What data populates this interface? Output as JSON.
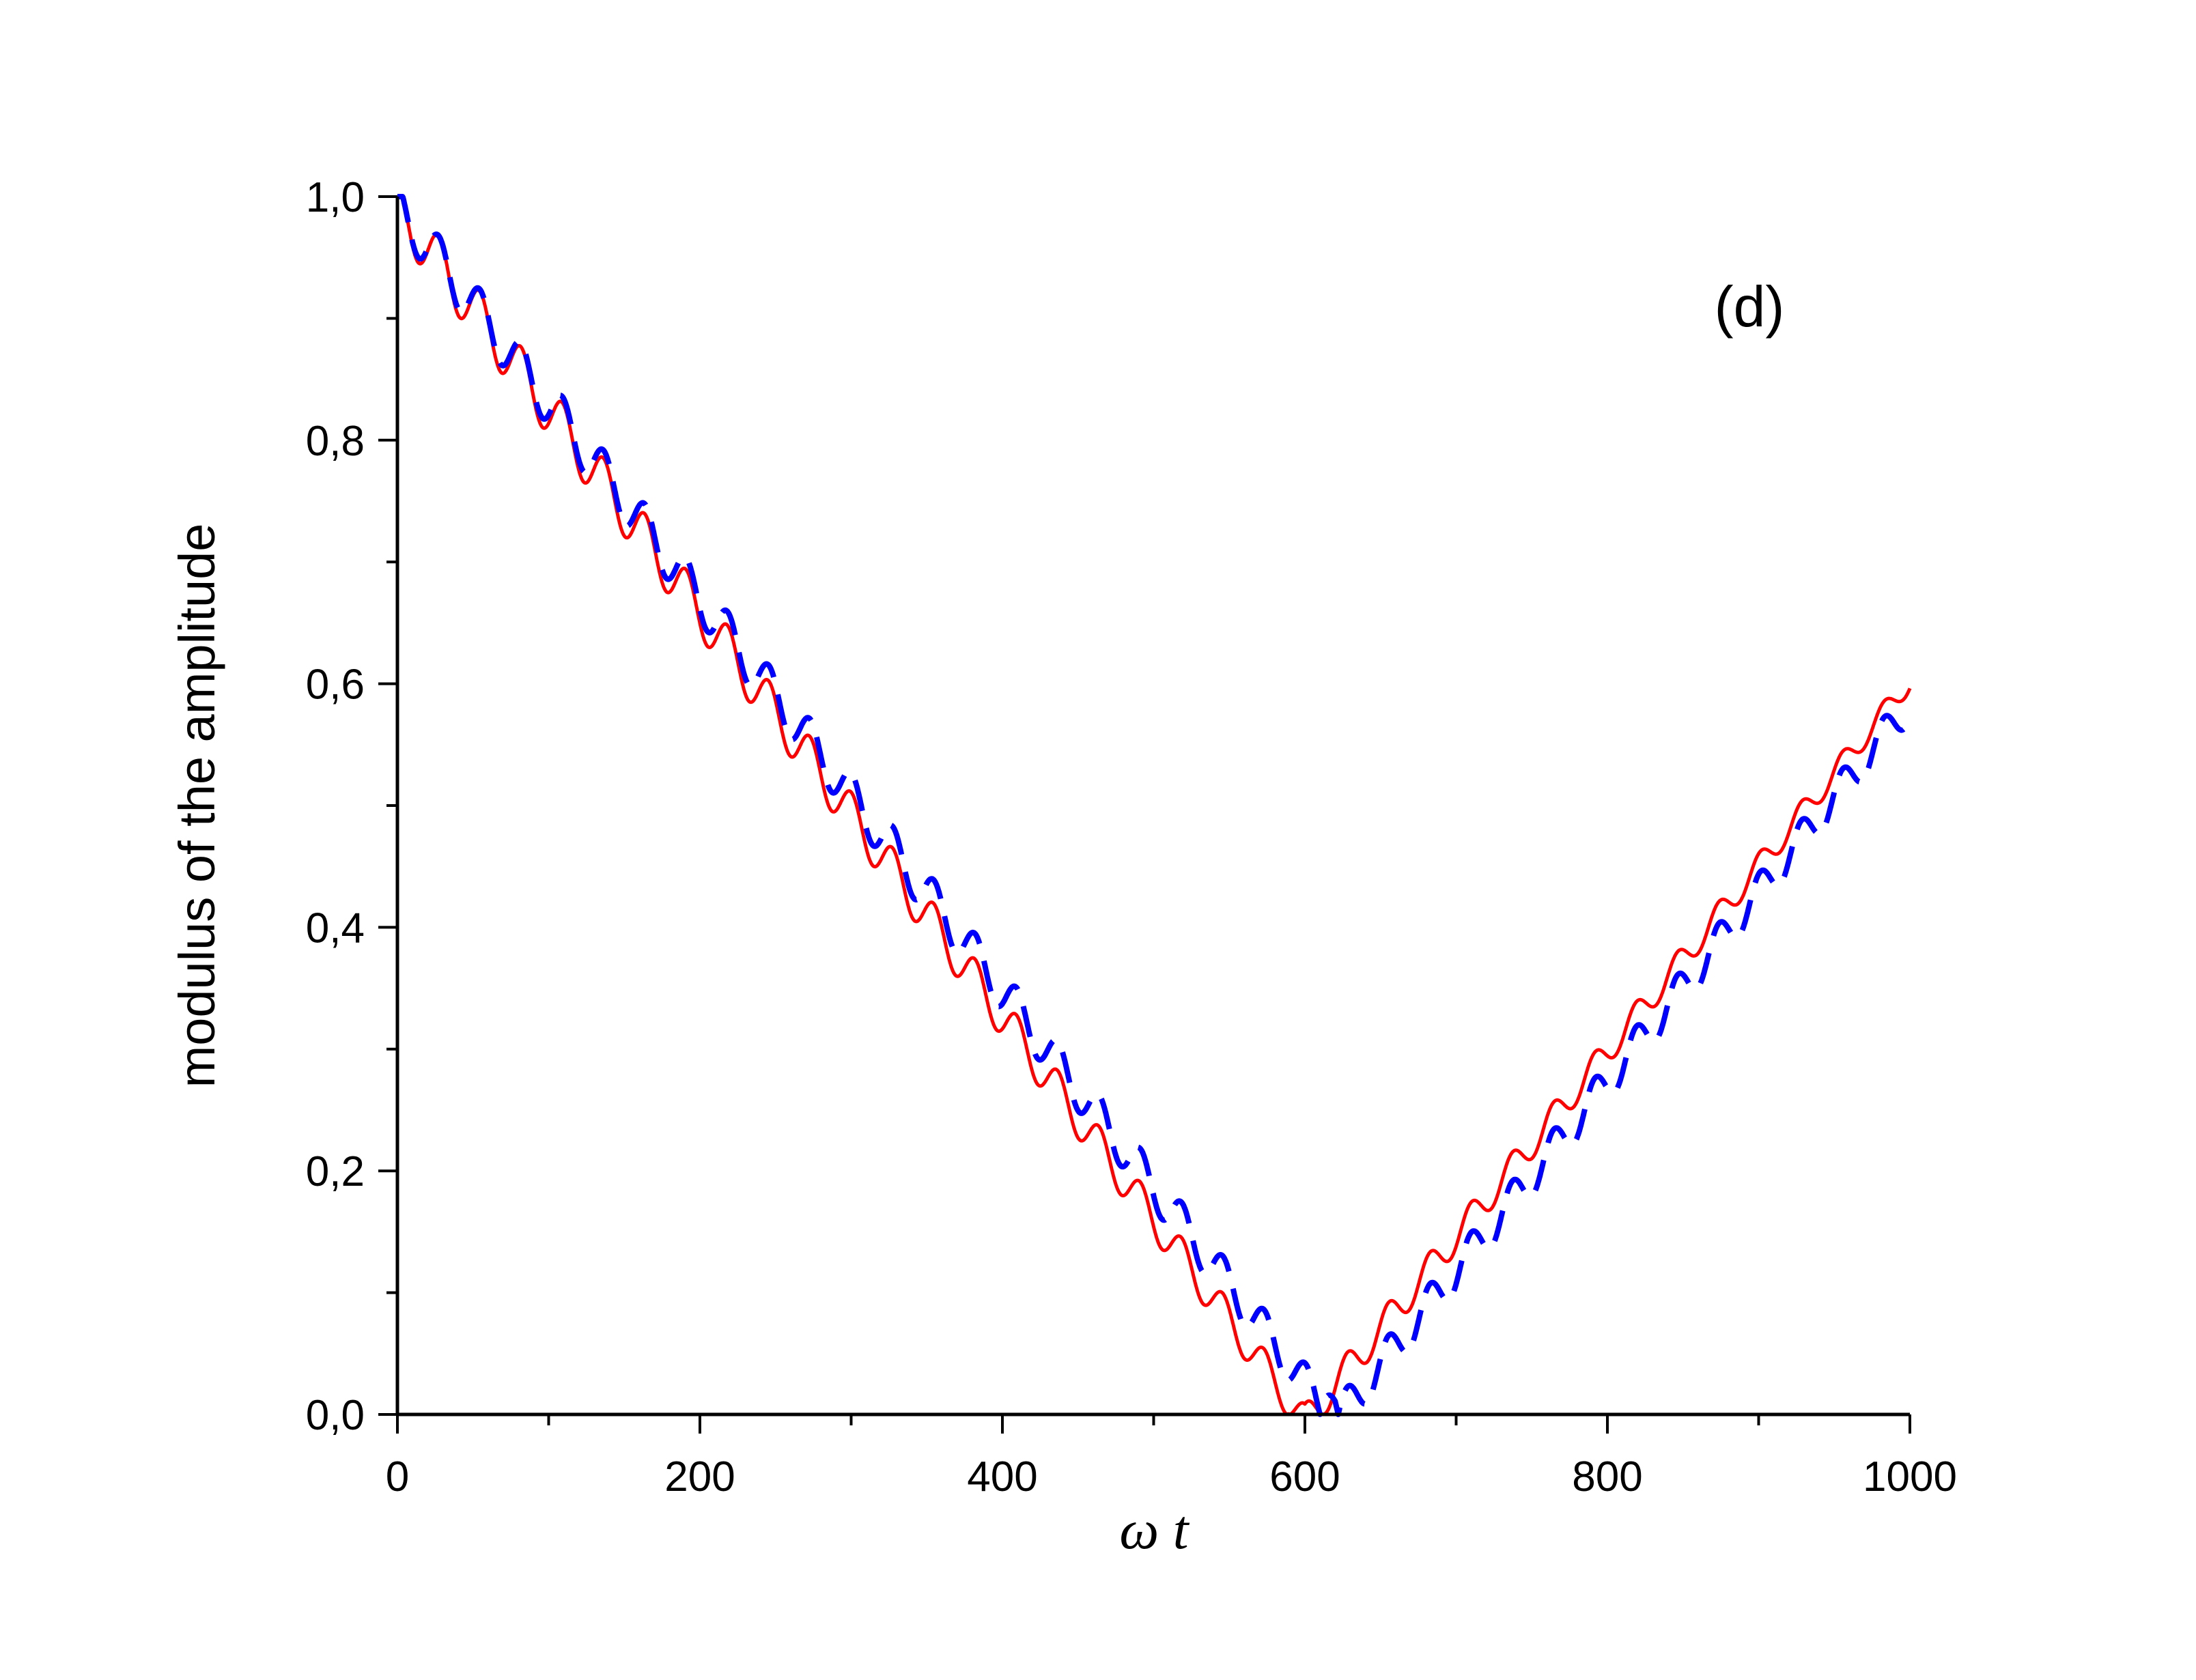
{
  "chart_data": {
    "type": "line",
    "xlabel": "ω t",
    "ylabel": "modulus of the amplitude",
    "annotation": "(d)",
    "xlim": [
      0,
      1000
    ],
    "ylim": [
      0,
      1.0
    ],
    "x_ticks": [
      "0",
      "200",
      "400",
      "600",
      "800",
      "1000"
    ],
    "y_ticks": [
      "0,0",
      "0,2",
      "0,4",
      "0,6",
      "0,8",
      "1,0"
    ],
    "grid": false,
    "legend": "none",
    "series": [
      {
        "color": "#ff0000",
        "style": "solid",
        "envelope": [
          [
            0,
            1.0
          ],
          [
            600,
            0.0
          ],
          [
            1000,
            0.606
          ]
        ],
        "oscillation_period": 27.3,
        "oscillation_amplitude_start": 0.045,
        "oscillation_amplitude_end": 0.018
      },
      {
        "color": "#0000ff",
        "style": "dashed",
        "envelope": [
          [
            0,
            1.0
          ],
          [
            620,
            0.0
          ],
          [
            1000,
            0.59
          ]
        ],
        "oscillation_period": 27.3,
        "oscillation_amplitude_start": 0.04,
        "oscillation_amplitude_end": 0.03
      }
    ]
  }
}
